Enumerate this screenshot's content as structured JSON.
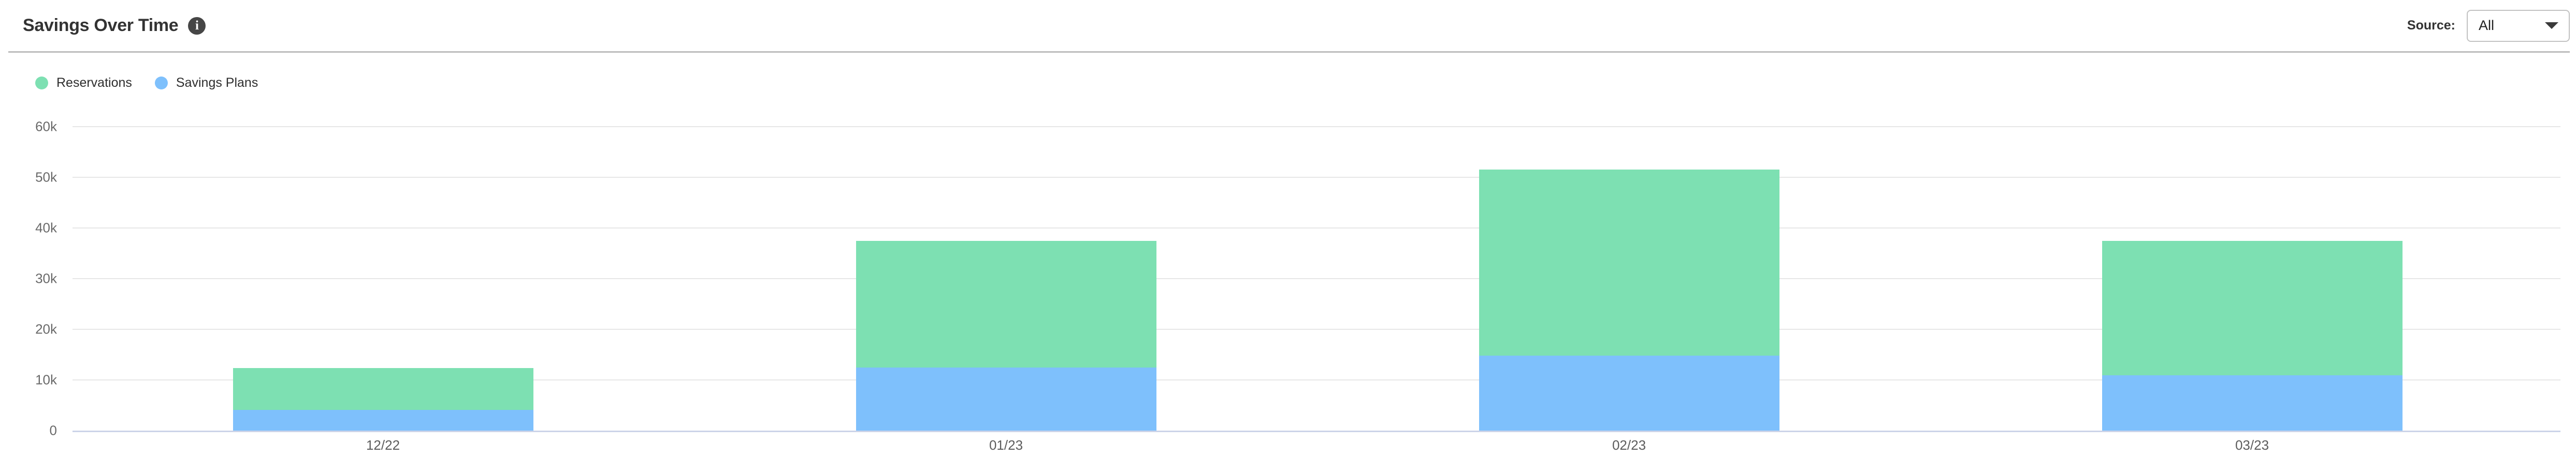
{
  "header": {
    "title": "Savings Over Time",
    "source_label": "Source:",
    "source_selected": "All"
  },
  "chart_data": {
    "type": "bar",
    "stacked": true,
    "title": "Savings Over Time",
    "categories": [
      "12/22",
      "01/23",
      "02/23",
      "03/23"
    ],
    "series": [
      {
        "name": "Reservations",
        "color": "#7de0b2",
        "values": [
          8200,
          25000,
          36700,
          26500
        ]
      },
      {
        "name": "Savings Plans",
        "color": "#7ec0fc",
        "values": [
          4100,
          12500,
          14800,
          10900
        ]
      }
    ],
    "stack_bottom_to_top": [
      1,
      0
    ],
    "ylim": [
      0,
      60000
    ],
    "yticks": [
      {
        "value": 0,
        "label": "0"
      },
      {
        "value": 10000,
        "label": "10k"
      },
      {
        "value": 20000,
        "label": "20k"
      },
      {
        "value": 30000,
        "label": "30k"
      },
      {
        "value": 40000,
        "label": "40k"
      },
      {
        "value": 50000,
        "label": "50k"
      },
      {
        "value": 60000,
        "label": "60k"
      }
    ],
    "grid": true,
    "legend_position": "top-left"
  },
  "colors": {
    "reservations": "#7de0b2",
    "savings_plans": "#7ec0fc",
    "gridline": "#e7e7e7",
    "zero_axis_line": "#ccd3e8",
    "header_divider": "#bdbdbd",
    "title_text": "#333333",
    "tick_text": "#696969"
  },
  "icons": {
    "info": "info-icon",
    "dropdown_caret": "chevron-down-icon"
  }
}
